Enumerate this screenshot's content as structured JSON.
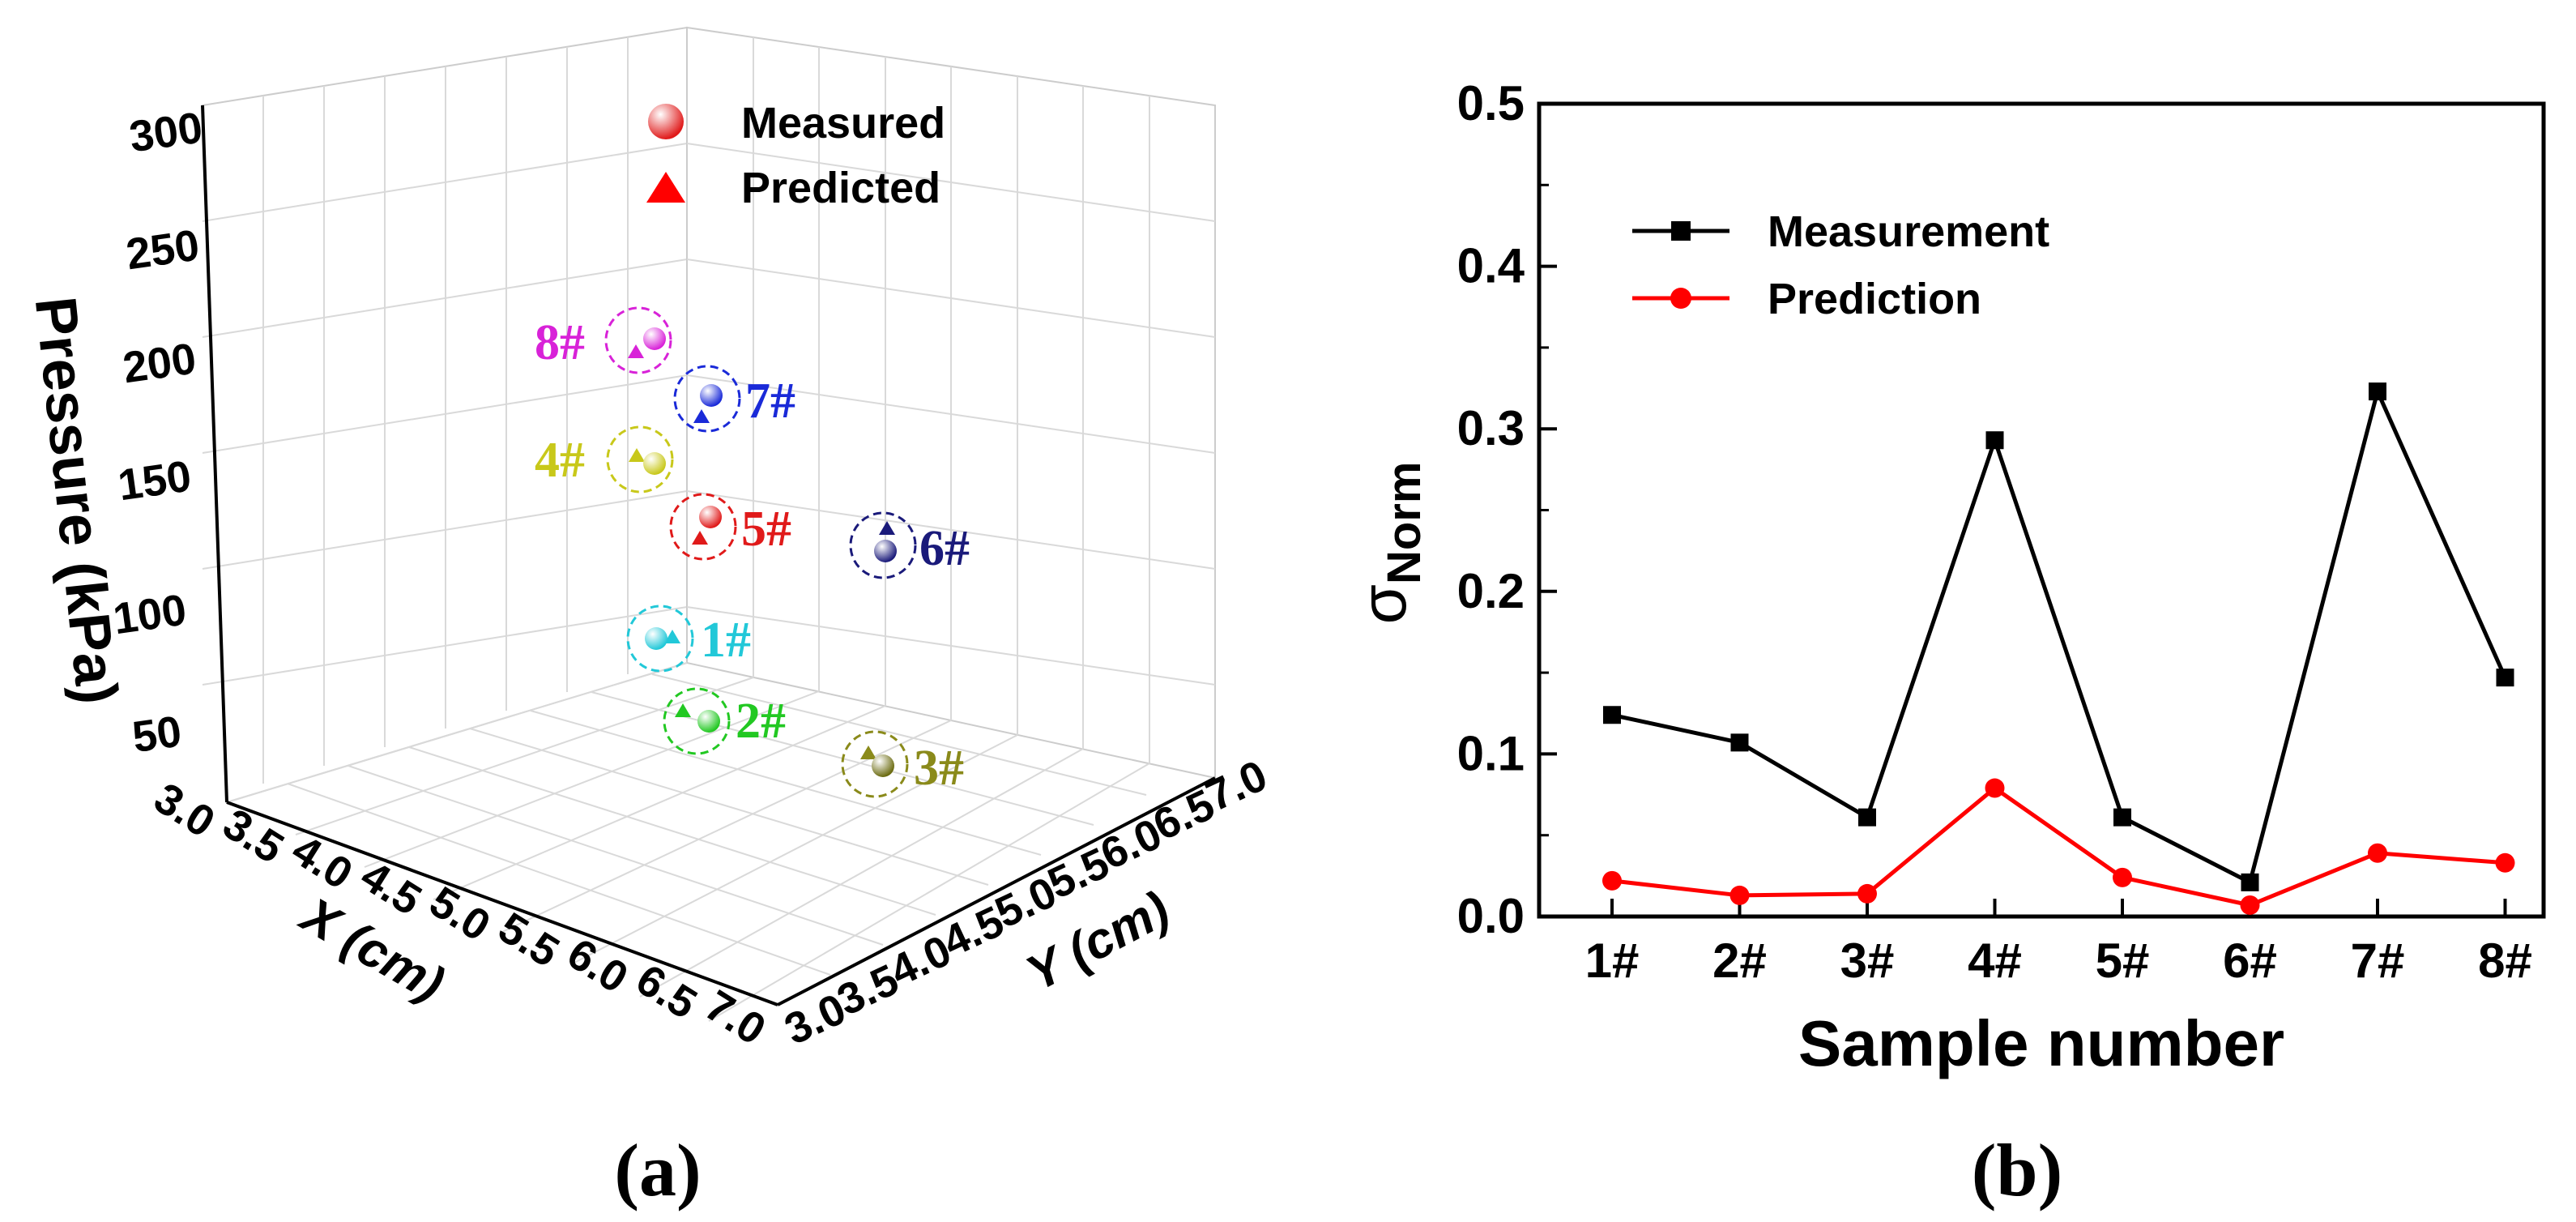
{
  "panel_a": {
    "label": "(a)",
    "z_axis_label": "Pressure (kPa)",
    "x_axis_label": "X (cm)",
    "y_axis_label": "Y (cm)",
    "z_ticks": [
      "50",
      "100",
      "150",
      "200",
      "250",
      "300"
    ],
    "x_ticks": [
      "3.0",
      "3.5",
      "4.0",
      "4.5",
      "5.0",
      "5.5",
      "6.0",
      "6.5",
      "7.0"
    ],
    "y_ticks": [
      "3.0",
      "3.5",
      "4.0",
      "4.5",
      "5.0",
      "5.5",
      "6.0",
      "6.5",
      "7.0"
    ],
    "legend": {
      "measured": "Measured",
      "predicted": "Predicted"
    },
    "samples": [
      {
        "label": "1#",
        "color": "#22c8d8"
      },
      {
        "label": "2#",
        "color": "#22c822"
      },
      {
        "label": "3#",
        "color": "#8a8a1a"
      },
      {
        "label": "4#",
        "color": "#c8c81a"
      },
      {
        "label": "5#",
        "color": "#e01a1a"
      },
      {
        "label": "6#",
        "color": "#1a1a7a"
      },
      {
        "label": "7#",
        "color": "#1a2ad8"
      },
      {
        "label": "8#",
        "color": "#d822d8"
      }
    ]
  },
  "panel_b": {
    "label": "(b)"
  },
  "chart_data": {
    "type": "line",
    "title": "",
    "xlabel": "Sample number",
    "ylabel": "σ",
    "ylabel_sub": "Norm",
    "categories": [
      "1#",
      "2#",
      "3#",
      "4#",
      "5#",
      "6#",
      "7#",
      "8#"
    ],
    "ylim": [
      0.0,
      0.5
    ],
    "yticks": [
      "0.0",
      "0.1",
      "0.2",
      "0.3",
      "0.4",
      "0.5"
    ],
    "series": [
      {
        "name": "Measurement",
        "color": "#000000",
        "marker": "square",
        "values": [
          0.124,
          0.107,
          0.061,
          0.293,
          0.061,
          0.021,
          0.323,
          0.147
        ]
      },
      {
        "name": "Prediction",
        "color": "#ff0000",
        "marker": "circle",
        "values": [
          0.022,
          0.013,
          0.014,
          0.079,
          0.024,
          0.007,
          0.039,
          0.033
        ]
      }
    ]
  }
}
